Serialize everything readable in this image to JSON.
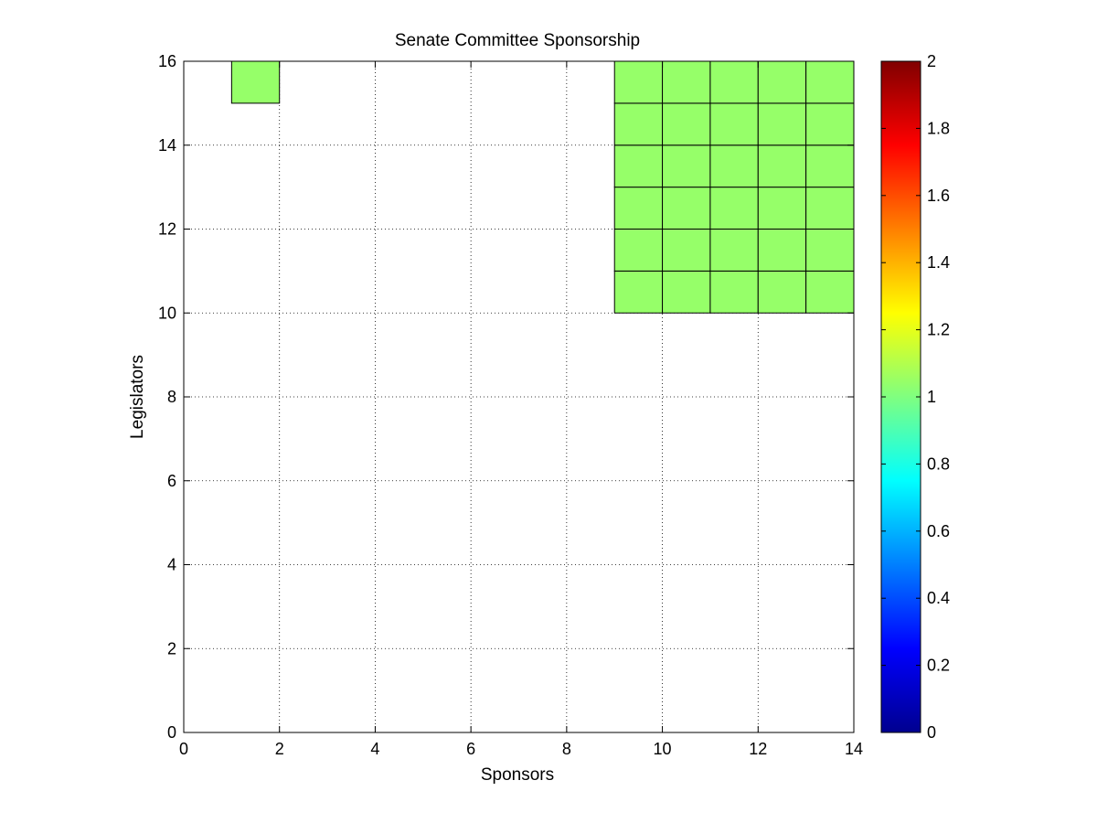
{
  "chart_data": {
    "type": "heatmap",
    "title": "Senate Committee Sponsorship",
    "xlabel": "Sponsors",
    "ylabel": "Legislators",
    "xlim": [
      0,
      14
    ],
    "ylim": [
      0,
      16
    ],
    "xticks": [
      0,
      2,
      4,
      6,
      8,
      10,
      12,
      14
    ],
    "yticks": [
      0,
      2,
      4,
      6,
      8,
      10,
      12,
      14,
      16
    ],
    "grid": true,
    "colormap": "jet",
    "clim": [
      0,
      2
    ],
    "colorbar_ticks": [
      "0",
      "0.2",
      "0.4",
      "0.6",
      "0.8",
      "1",
      "1.2",
      "1.4",
      "1.6",
      "1.8",
      "2"
    ],
    "cell_color": "#96ff69",
    "cells": [
      {
        "x": 1,
        "y": 15,
        "value": 1
      },
      {
        "x": 9,
        "y": 10,
        "value": 1
      },
      {
        "x": 10,
        "y": 10,
        "value": 1
      },
      {
        "x": 11,
        "y": 10,
        "value": 1
      },
      {
        "x": 12,
        "y": 10,
        "value": 1
      },
      {
        "x": 13,
        "y": 10,
        "value": 1
      },
      {
        "x": 9,
        "y": 11,
        "value": 1
      },
      {
        "x": 10,
        "y": 11,
        "value": 1
      },
      {
        "x": 11,
        "y": 11,
        "value": 1
      },
      {
        "x": 12,
        "y": 11,
        "value": 1
      },
      {
        "x": 13,
        "y": 11,
        "value": 1
      },
      {
        "x": 9,
        "y": 12,
        "value": 1
      },
      {
        "x": 10,
        "y": 12,
        "value": 1
      },
      {
        "x": 11,
        "y": 12,
        "value": 1
      },
      {
        "x": 12,
        "y": 12,
        "value": 1
      },
      {
        "x": 13,
        "y": 12,
        "value": 1
      },
      {
        "x": 9,
        "y": 13,
        "value": 1
      },
      {
        "x": 10,
        "y": 13,
        "value": 1
      },
      {
        "x": 11,
        "y": 13,
        "value": 1
      },
      {
        "x": 12,
        "y": 13,
        "value": 1
      },
      {
        "x": 13,
        "y": 13,
        "value": 1
      },
      {
        "x": 9,
        "y": 14,
        "value": 1
      },
      {
        "x": 10,
        "y": 14,
        "value": 1
      },
      {
        "x": 11,
        "y": 14,
        "value": 1
      },
      {
        "x": 12,
        "y": 14,
        "value": 1
      },
      {
        "x": 13,
        "y": 14,
        "value": 1
      },
      {
        "x": 9,
        "y": 15,
        "value": 1
      },
      {
        "x": 10,
        "y": 15,
        "value": 1
      },
      {
        "x": 11,
        "y": 15,
        "value": 1
      },
      {
        "x": 12,
        "y": 15,
        "value": 1
      },
      {
        "x": 13,
        "y": 15,
        "value": 1
      }
    ]
  }
}
